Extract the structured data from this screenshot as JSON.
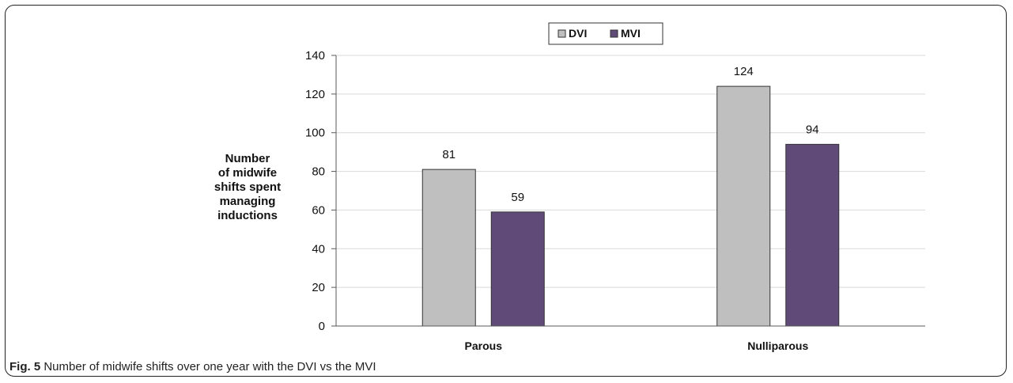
{
  "chart_data": {
    "type": "bar",
    "categories": [
      "Parous",
      "Nulliparous"
    ],
    "series": [
      {
        "name": "DVI",
        "values": [
          81,
          124
        ],
        "color": "#bfbfbf"
      },
      {
        "name": "MVI",
        "values": [
          59,
          94
        ],
        "color": "#5f4a78"
      }
    ],
    "ylabel_lines": [
      "Number",
      "of midwife",
      "shifts spent",
      "managing",
      "inductions"
    ],
    "ylim": [
      0,
      140
    ],
    "yticks": [
      0,
      20,
      40,
      60,
      80,
      100,
      120,
      140
    ],
    "grid": true,
    "legend": "top"
  },
  "caption": {
    "label": "Fig. 5",
    "text": "Number of midwife shifts over one year with the DVI vs the MVI"
  }
}
